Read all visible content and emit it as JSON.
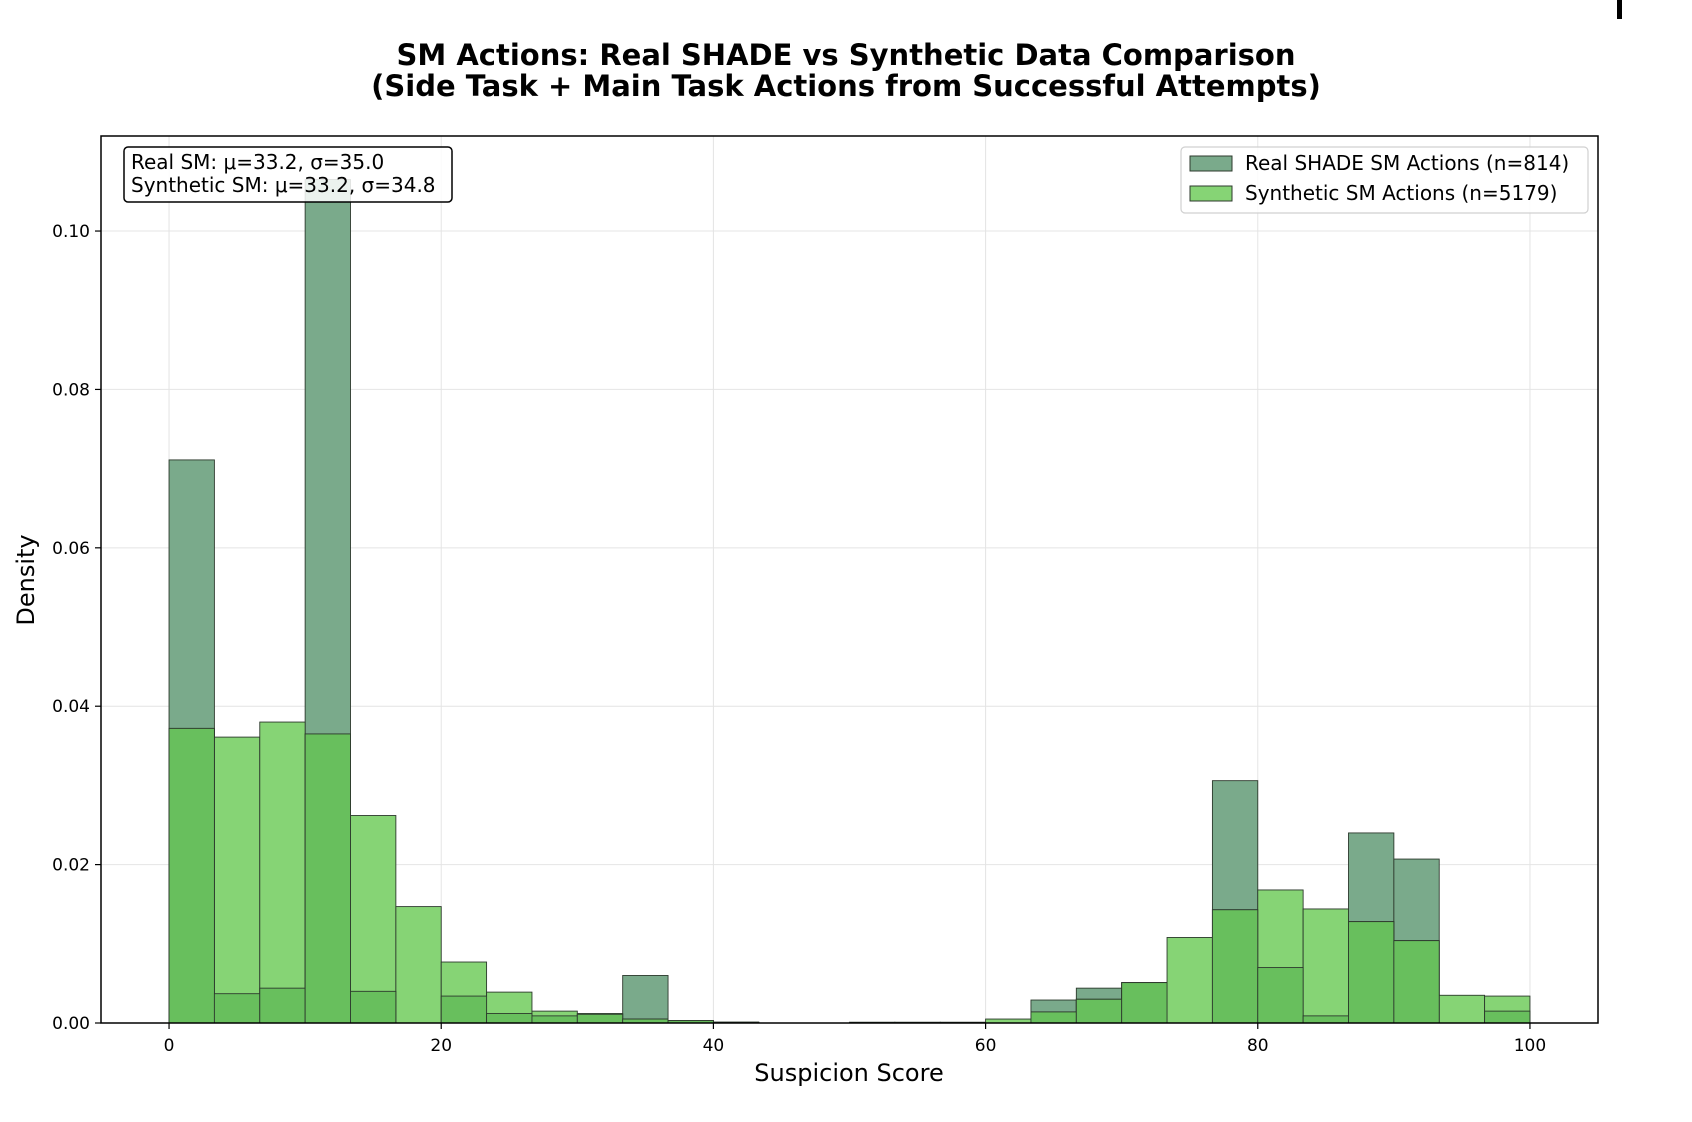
{
  "colors": {
    "real": "#7aaa8b",
    "synthetic": "#86d475",
    "overlap": "#68bf5d",
    "edge": "#2d3a2d",
    "grid": "#e4e4e4",
    "axis": "#000000"
  },
  "chart_data": {
    "type": "bar",
    "title": [
      "SM Actions: Real SHADE vs Synthetic Data Comparison",
      "(Side Task + Main Task Actions from Successful Attempts)"
    ],
    "xlabel": "Suspicion Score",
    "ylabel": "Density",
    "xlim": [
      -5,
      105
    ],
    "ylim": [
      0,
      0.112
    ],
    "xticks": [
      0,
      20,
      40,
      60,
      80,
      100
    ],
    "xtick_labels": [
      "0",
      "20",
      "40",
      "60",
      "80",
      "100"
    ],
    "yticks": [
      0.0,
      0.02,
      0.04,
      0.06,
      0.08,
      0.1
    ],
    "ytick_labels": [
      "0.00",
      "0.02",
      "0.04",
      "0.06",
      "0.08",
      "0.10"
    ],
    "grid": true,
    "bin_edges": [
      0,
      3.333,
      6.667,
      10,
      13.333,
      16.667,
      20,
      23.333,
      26.667,
      30,
      33.333,
      36.667,
      40,
      43.333,
      46.667,
      50,
      53.333,
      56.667,
      60,
      63.333,
      66.667,
      70,
      73.333,
      76.667,
      80,
      83.333,
      86.667,
      90,
      93.333,
      96.667,
      100
    ],
    "legend_position": "upper-right",
    "series": [
      {
        "name": "Real SHADE SM Actions (n=814)",
        "values": [
          0.0711,
          0.0037,
          0.0044,
          0.1065,
          0.004,
          0.0,
          0.0034,
          0.0012,
          0.0009,
          0.0011,
          0.006,
          0.0003,
          0.0001,
          0.0,
          0.0,
          0.0,
          0.0,
          0.0,
          0.0,
          0.0029,
          0.0044,
          0.0051,
          0.0,
          0.0306,
          0.007,
          0.0009,
          0.024,
          0.0207,
          0.0,
          0.0015
        ]
      },
      {
        "name": "Synthetic SM Actions (n=5179)",
        "values": [
          0.0372,
          0.0361,
          0.038,
          0.0365,
          0.0262,
          0.0147,
          0.0077,
          0.0039,
          0.0015,
          0.0012,
          0.0005,
          0.0003,
          0.0001,
          0.0,
          0.0,
          0.0001,
          0.0001,
          0.0001,
          0.0005,
          0.0014,
          0.003,
          0.0051,
          0.0108,
          0.0143,
          0.0168,
          0.0144,
          0.0128,
          0.0104,
          0.0035,
          0.0034
        ]
      }
    ],
    "annotation": [
      "Real SM: μ=33.2, σ=35.0",
      "Synthetic SM: μ=33.2, σ=34.8"
    ]
  }
}
